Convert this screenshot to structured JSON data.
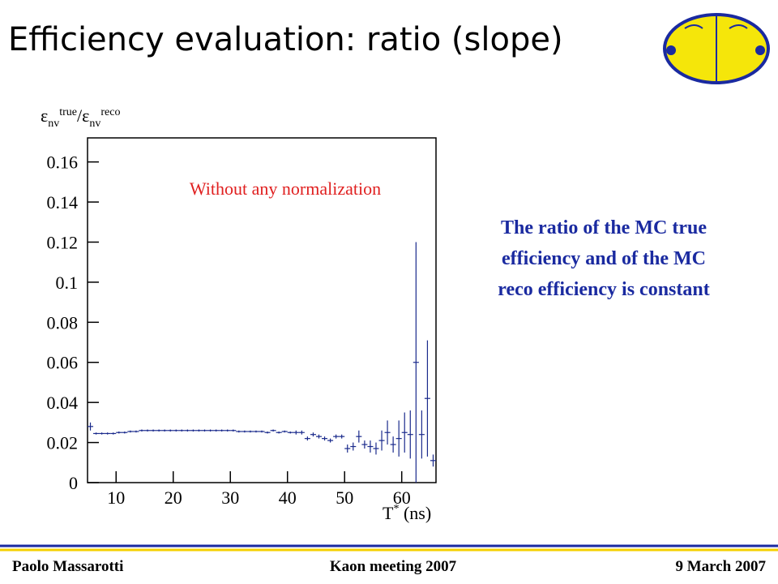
{
  "title": "Efficiency evaluation: ratio (slope)",
  "description": [
    "The ratio of the MC true",
    "efficiency and of the MC",
    "reco efficiency is constant"
  ],
  "footer": {
    "left": "Paolo Massarotti",
    "center": "Kaon  meeting  2007",
    "right": "9 March 2007"
  },
  "chart_data": {
    "type": "errorbar",
    "annotation": "Without any normalization",
    "y_label": [
      "ε",
      "nv",
      "true",
      "/ε",
      "nv",
      "reco"
    ],
    "x_label": [
      "T",
      "*",
      " (ns)"
    ],
    "color": "#1a2a8c",
    "xlim": [
      5,
      66
    ],
    "xticks": [
      10,
      20,
      30,
      40,
      50,
      60
    ],
    "ylim": [
      0,
      0.172
    ],
    "yticks": [
      0,
      0.02,
      0.04,
      0.06,
      0.08,
      0.1,
      0.12,
      0.14,
      0.16
    ],
    "x": [
      5.5,
      6.5,
      7.5,
      8.5,
      9.5,
      10.5,
      11.5,
      12.5,
      13.5,
      14.5,
      15.5,
      16.5,
      17.5,
      18.5,
      19.5,
      20.5,
      21.5,
      22.5,
      23.5,
      24.5,
      25.5,
      26.5,
      27.5,
      28.5,
      29.5,
      30.5,
      31.5,
      32.5,
      33.5,
      34.5,
      35.5,
      36.5,
      37.5,
      38.5,
      39.5,
      40.5,
      41.5,
      42.5,
      43.5,
      44.5,
      45.5,
      46.5,
      47.5,
      48.5,
      49.5,
      50.5,
      51.5,
      52.5,
      53.5,
      54.5,
      55.5,
      56.5,
      57.5,
      58.5,
      59.5,
      60.5,
      61.5,
      62.5,
      63.5,
      64.5,
      65.5
    ],
    "values": [
      0.028,
      0.0245,
      0.0245,
      0.0245,
      0.0245,
      0.025,
      0.025,
      0.0255,
      0.0255,
      0.026,
      0.026,
      0.026,
      0.026,
      0.026,
      0.026,
      0.026,
      0.026,
      0.026,
      0.026,
      0.026,
      0.026,
      0.026,
      0.026,
      0.026,
      0.026,
      0.026,
      0.0255,
      0.0255,
      0.0255,
      0.0255,
      0.0255,
      0.025,
      0.026,
      0.025,
      0.0255,
      0.025,
      0.025,
      0.025,
      0.022,
      0.024,
      0.023,
      0.022,
      0.021,
      0.023,
      0.023,
      0.017,
      0.018,
      0.023,
      0.019,
      0.018,
      0.017,
      0.021,
      0.025,
      0.019,
      0.022,
      0.025,
      0.024,
      0.06,
      0.024,
      0.042,
      0.011
    ],
    "errors": [
      0.002,
      0.0005,
      0.0005,
      0.0005,
      0.0005,
      0.0005,
      0.0005,
      0.0005,
      0.0005,
      0.0005,
      0.0005,
      0.0005,
      0.0005,
      0.0005,
      0.0005,
      0.0005,
      0.0005,
      0.0005,
      0.0005,
      0.0005,
      0.0005,
      0.0005,
      0.0005,
      0.0005,
      0.0005,
      0.0005,
      0.0005,
      0.0005,
      0.0005,
      0.0005,
      0.0005,
      0.0005,
      0.0005,
      0.0005,
      0.0005,
      0.0005,
      0.001,
      0.001,
      0.001,
      0.001,
      0.001,
      0.001,
      0.001,
      0.001,
      0.001,
      0.002,
      0.002,
      0.003,
      0.002,
      0.003,
      0.003,
      0.005,
      0.006,
      0.004,
      0.009,
      0.01,
      0.012,
      0.06,
      0.012,
      0.029,
      0.003
    ]
  }
}
